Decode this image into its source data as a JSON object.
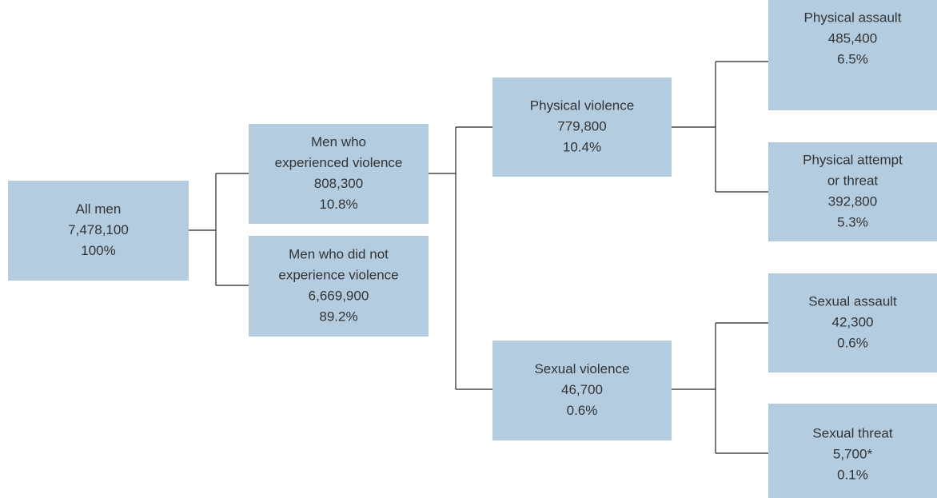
{
  "nodes": [
    {
      "label": [
        "All men"
      ],
      "count": "7,478,100",
      "percent": "100%"
    },
    {
      "label": [
        "Men who",
        "experienced violence"
      ],
      "count": "808,300",
      "percent": "10.8%"
    },
    {
      "label": [
        "Men who did not",
        "experience violence"
      ],
      "count": "6,669,900",
      "percent": "89.2%"
    },
    {
      "label": [
        "Physical violence"
      ],
      "count": "779,800",
      "percent": "10.4%"
    },
    {
      "label": [
        "Sexual violence"
      ],
      "count": "46,700",
      "percent": "0.6%"
    },
    {
      "label": [
        "Physical assault"
      ],
      "count": "485,400",
      "percent": "6.5%"
    },
    {
      "label": [
        "Physical attempt",
        "or threat"
      ],
      "count": "392,800",
      "percent": "5.3%"
    },
    {
      "label": [
        "Sexual assault"
      ],
      "count": "42,300",
      "percent": "0.6%"
    },
    {
      "label": [
        "Sexual threat"
      ],
      "count": "5,700*",
      "percent": "0.1%"
    }
  ]
}
